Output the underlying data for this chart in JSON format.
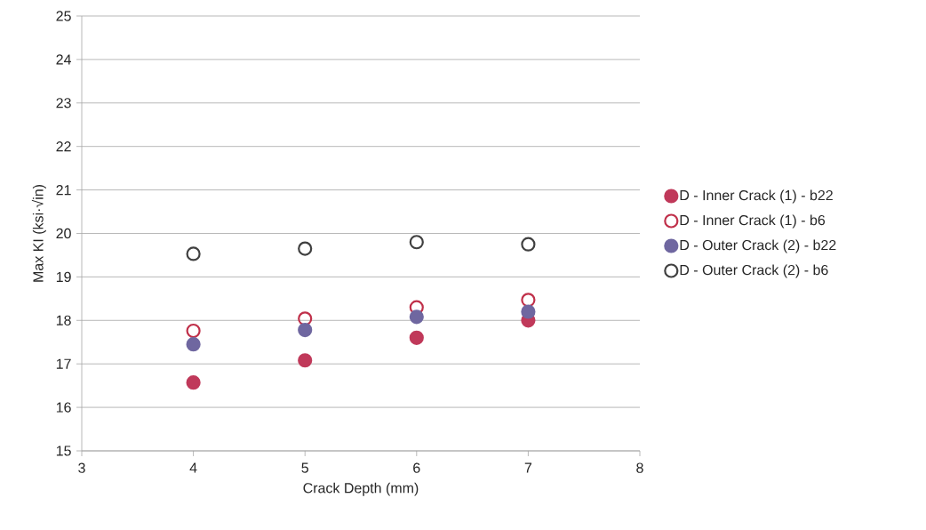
{
  "chart_data": {
    "type": "scatter",
    "xlabel": "Crack Depth (mm)",
    "ylabel": "Max KI (ksi·√in)",
    "xlim": [
      3,
      8
    ],
    "xticks": [
      3,
      4,
      5,
      6,
      7,
      8
    ],
    "ylim": [
      15,
      25
    ],
    "yticks": [
      15,
      16,
      17,
      18,
      19,
      20,
      21,
      22,
      23,
      24,
      25
    ],
    "grid": "y",
    "legend": "right",
    "x": [
      4,
      5,
      6,
      7
    ],
    "series": [
      {
        "name": "D - Inner Crack (1) - b22",
        "color": "#c0395a",
        "marker": "circle",
        "values": [
          16.57,
          17.08,
          17.6,
          18.0
        ]
      },
      {
        "name": "D - Inner Crack (1) - b6",
        "color": "#c0304a",
        "marker": "open circle",
        "values": [
          17.76,
          18.04,
          18.3,
          18.47
        ]
      },
      {
        "name": "D - Outer Crack (2) - b22",
        "color": "#6f67a0",
        "marker": "circle",
        "values": [
          17.45,
          17.78,
          18.08,
          18.2
        ]
      },
      {
        "name": "D - Outer Crack (2) - b6",
        "color": "#404040",
        "marker": "open circle",
        "values": [
          19.53,
          19.65,
          19.8,
          19.75
        ]
      }
    ]
  }
}
